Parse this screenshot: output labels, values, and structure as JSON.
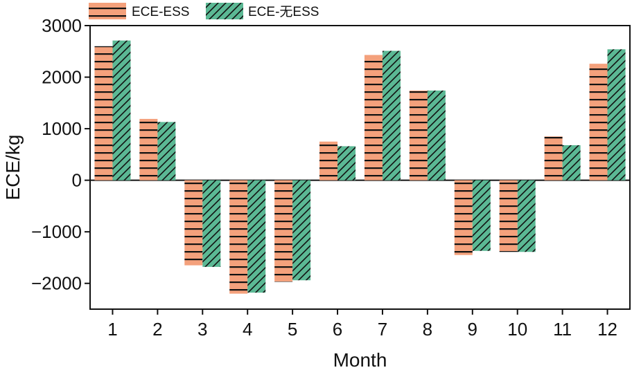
{
  "chart_data": {
    "type": "bar",
    "title": "",
    "xlabel": "Month",
    "ylabel": "ECE/kg",
    "categories": [
      "1",
      "2",
      "3",
      "4",
      "5",
      "6",
      "7",
      "8",
      "9",
      "10",
      "11",
      "12"
    ],
    "ylim": [
      -2500,
      3000
    ],
    "yticks": [
      -2000,
      -1000,
      0,
      1000,
      2000,
      3000
    ],
    "ytick_labels": [
      "−2000",
      "−1000",
      "0",
      "1000",
      "2000",
      "3000"
    ],
    "grid": false,
    "legend_position": "top-left, outside plot",
    "series": [
      {
        "name": "ECE-ESS",
        "color": "#f4a17c",
        "pattern": "horizontal-lines",
        "values": [
          2600,
          1190,
          -1650,
          -2200,
          -1970,
          750,
          2430,
          1740,
          -1450,
          -1390,
          850,
          2260
        ]
      },
      {
        "name": "ECE-无ESS",
        "color": "#5bb894",
        "pattern": "diagonal-lines",
        "values": [
          2710,
          1130,
          -1680,
          -2180,
          -1940,
          660,
          2510,
          1740,
          -1370,
          -1390,
          680,
          2540
        ]
      }
    ]
  }
}
